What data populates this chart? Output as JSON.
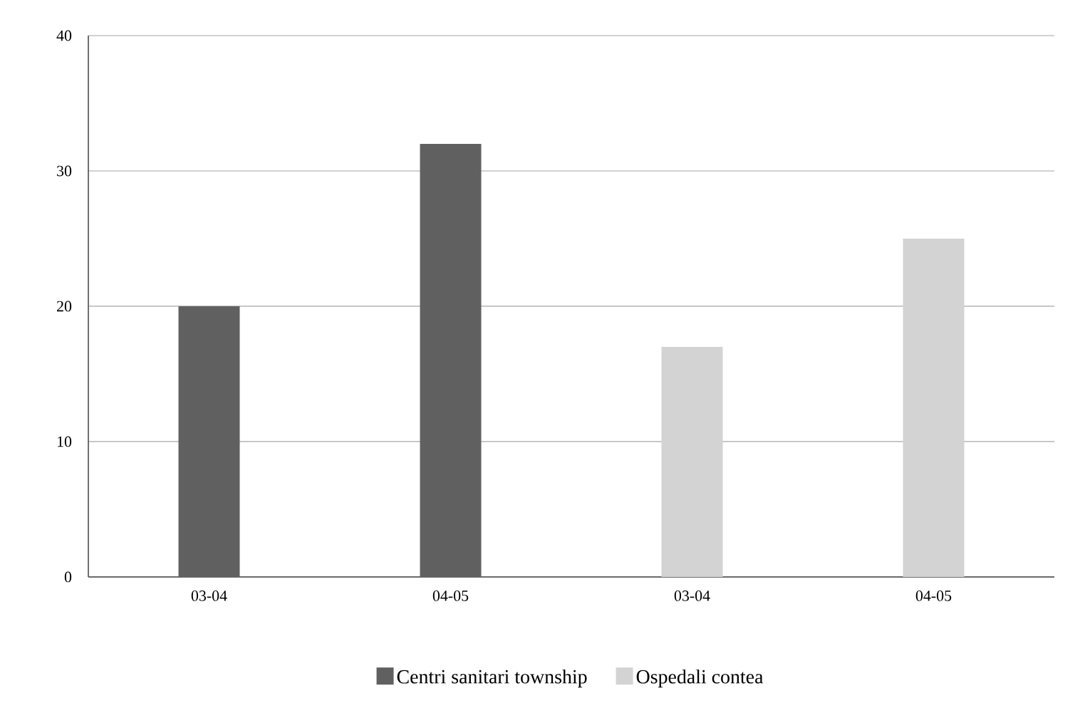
{
  "chart_data": {
    "type": "bar",
    "categories": [
      "03-04",
      "04-05",
      "03-04",
      "04-05"
    ],
    "series": [
      {
        "name": "Centri sanitari township",
        "color": "#606060",
        "values": [
          20,
          32,
          null,
          null
        ]
      },
      {
        "name": "Ospedali contea",
        "color": "#d3d3d3",
        "values": [
          null,
          null,
          17,
          25
        ]
      }
    ],
    "ylim": [
      0,
      40
    ],
    "yticks": [
      0,
      10,
      20,
      30,
      40
    ],
    "grid": "y",
    "legend": "bottom"
  }
}
